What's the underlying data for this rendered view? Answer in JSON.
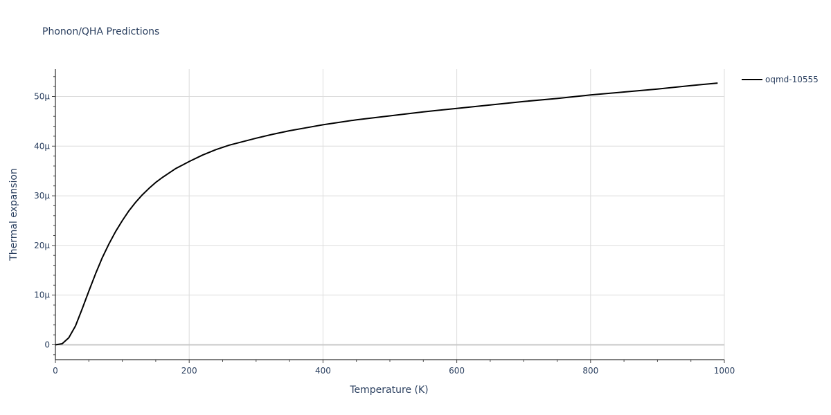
{
  "chart_data": {
    "type": "line",
    "title": "Phonon/QHA Predictions",
    "xlabel": "Temperature (K)",
    "ylabel": "Thermal expansion",
    "xlim": [
      0,
      1000
    ],
    "ylim": [
      -3e-06,
      5.55e-05
    ],
    "x_ticks": [
      0,
      200,
      400,
      600,
      800,
      1000
    ],
    "x_tick_labels": [
      "0",
      "200",
      "400",
      "600",
      "800",
      "1000"
    ],
    "y_ticks": [
      0,
      1e-05,
      2e-05,
      3e-05,
      4e-05,
      5e-05
    ],
    "y_tick_labels": [
      "0",
      "10µ",
      "20µ",
      "30µ",
      "40µ",
      "50µ"
    ],
    "grid": true,
    "legend_position": "top-right",
    "series": [
      {
        "name": "oqmd-10555",
        "color": "#000000",
        "x": [
          0,
          10,
          20,
          30,
          40,
          50,
          60,
          70,
          80,
          90,
          100,
          110,
          120,
          130,
          140,
          150,
          160,
          170,
          180,
          190,
          200,
          220,
          240,
          260,
          280,
          300,
          325,
          350,
          375,
          400,
          450,
          500,
          550,
          600,
          650,
          700,
          750,
          800,
          850,
          900,
          950,
          990
        ],
        "y": [
          0,
          2e-07,
          1.4e-06,
          3.8e-06,
          7.2e-06,
          1.08e-05,
          1.43e-05,
          1.75e-05,
          2.03e-05,
          2.28e-05,
          2.5e-05,
          2.7e-05,
          2.87e-05,
          3.02e-05,
          3.15e-05,
          3.27e-05,
          3.37e-05,
          3.46e-05,
          3.55e-05,
          3.62e-05,
          3.69e-05,
          3.82e-05,
          3.93e-05,
          4.02e-05,
          4.09e-05,
          4.16e-05,
          4.24e-05,
          4.31e-05,
          4.37e-05,
          4.43e-05,
          4.53e-05,
          4.61e-05,
          4.69e-05,
          4.76e-05,
          4.83e-05,
          4.9e-05,
          4.96e-05,
          5.03e-05,
          5.09e-05,
          5.15e-05,
          5.22e-05,
          5.27e-05
        ]
      }
    ]
  }
}
